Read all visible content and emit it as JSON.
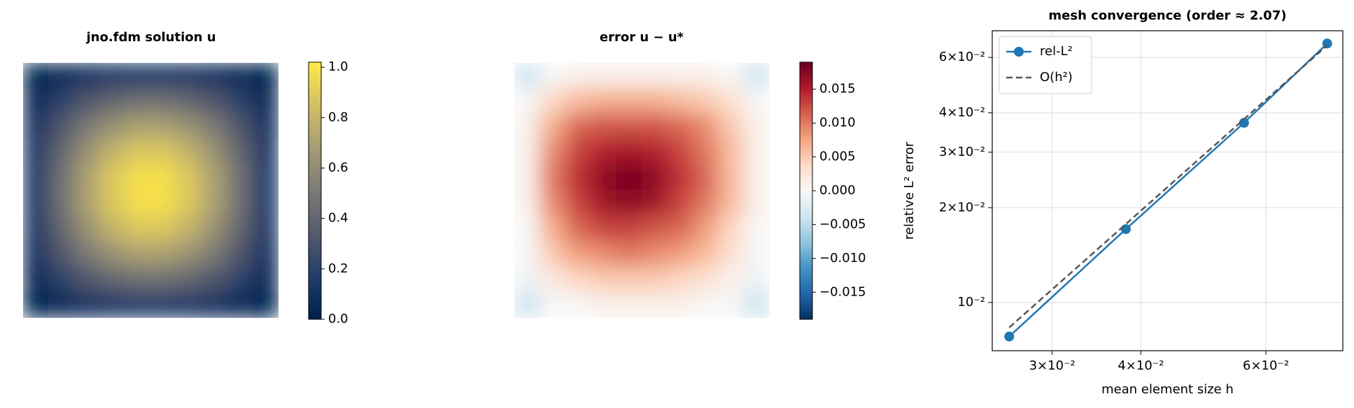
{
  "chart_data": [
    {
      "type": "heatmap",
      "title": "jno.fdm solution  u",
      "z": [
        [
          0.03,
          0.07,
          0.11,
          0.14,
          0.16,
          0.16,
          0.14,
          0.11,
          0.07,
          0.03
        ],
        [
          0.07,
          0.2,
          0.32,
          0.4,
          0.45,
          0.45,
          0.4,
          0.32,
          0.2,
          0.07
        ],
        [
          0.11,
          0.32,
          0.5,
          0.63,
          0.7,
          0.7,
          0.63,
          0.5,
          0.32,
          0.11
        ],
        [
          0.14,
          0.4,
          0.63,
          0.79,
          0.88,
          0.88,
          0.79,
          0.63,
          0.4,
          0.14
        ],
        [
          0.16,
          0.45,
          0.7,
          0.88,
          0.98,
          0.98,
          0.88,
          0.7,
          0.45,
          0.16
        ],
        [
          0.16,
          0.45,
          0.7,
          0.88,
          0.98,
          0.98,
          0.88,
          0.7,
          0.45,
          0.16
        ],
        [
          0.14,
          0.4,
          0.63,
          0.79,
          0.88,
          0.88,
          0.79,
          0.63,
          0.4,
          0.14
        ],
        [
          0.11,
          0.32,
          0.5,
          0.63,
          0.7,
          0.7,
          0.63,
          0.5,
          0.32,
          0.11
        ],
        [
          0.07,
          0.2,
          0.32,
          0.4,
          0.45,
          0.45,
          0.4,
          0.32,
          0.2,
          0.07
        ],
        [
          0.03,
          0.07,
          0.11,
          0.14,
          0.16,
          0.16,
          0.14,
          0.11,
          0.07,
          0.03
        ]
      ],
      "colorbar": {
        "lim": [
          0,
          1.02
        ],
        "ticks": [
          {
            "value": 0,
            "label": "0.0"
          },
          0.2,
          0.4,
          0.6,
          0.8,
          {
            "value": 1,
            "label": "1.0"
          }
        ],
        "colors": [
          "#00204c",
          "#213d6b",
          "#555b6c",
          "#7b7a77",
          "#a59c74",
          "#d3c064",
          "#ffe945"
        ]
      }
    },
    {
      "type": "heatmap",
      "title": "error  u − u*",
      "z": [
        [
          -0.004,
          0,
          0.001,
          0.001,
          0.001,
          0.001,
          0.001,
          0.001,
          0,
          -0.004
        ],
        [
          0,
          0.004,
          0.006,
          0.007,
          0.007,
          0.007,
          0.006,
          0.005,
          0.003,
          0
        ],
        [
          0.001,
          0.007,
          0.011,
          0.012,
          0.012,
          0.012,
          0.011,
          0.009,
          0.005,
          0.001
        ],
        [
          0.001,
          0.009,
          0.013,
          0.015,
          0.016,
          0.015,
          0.013,
          0.01,
          0.006,
          0.001
        ],
        [
          0.001,
          0.01,
          0.014,
          0.017,
          0.018,
          0.017,
          0.014,
          0.011,
          0.006,
          0.001
        ],
        [
          0.001,
          0.009,
          0.013,
          0.016,
          0.017,
          0.016,
          0.013,
          0.01,
          0.006,
          0.001
        ],
        [
          0,
          0.007,
          0.011,
          0.013,
          0.013,
          0.012,
          0.011,
          0.008,
          0.004,
          0
        ],
        [
          0,
          0.005,
          0.008,
          0.009,
          0.01,
          0.009,
          0.008,
          0.006,
          0.003,
          0
        ],
        [
          -0.001,
          0.002,
          0.004,
          0.005,
          0.005,
          0.005,
          0.004,
          0.003,
          0.001,
          -0.001
        ],
        [
          -0.004,
          0,
          0,
          0.001,
          0.001,
          0.001,
          0.001,
          0,
          0,
          -0.004
        ]
      ],
      "colorbar": {
        "lim": [
          -0.019,
          0.019
        ],
        "ticks": [
          {
            "value": -0.015,
            "label": "−0.015"
          },
          {
            "value": -0.01,
            "label": "−0.010"
          },
          {
            "value": -0.005,
            "label": "−0.005"
          },
          {
            "value": 0,
            "label": "0.000"
          },
          0.005,
          {
            "value": 0.01,
            "label": "0.010"
          },
          0.015
        ],
        "colors": [
          "#053061",
          "#2166ac",
          "#4393c3",
          "#92c5de",
          "#d1e5f0",
          "#f7f7f7",
          "#fddbc7",
          "#f4a582",
          "#d6604d",
          "#b2182b",
          "#67001f"
        ]
      }
    },
    {
      "type": "line",
      "title": "mesh convergence (order ≈ 2.07)",
      "xlabel": "mean element size h",
      "ylabel": "relative L² error",
      "x": [
        0.0261,
        0.0381,
        0.0559,
        0.0732
      ],
      "series": [
        {
          "name": "rel-L²",
          "color": "#1f77b4",
          "values": [
            0.0078,
            0.0171,
            0.0372,
            0.0664
          ],
          "marker": true
        },
        {
          "name": "O(h²)",
          "color": "#555555",
          "values": [
            0.00833,
            0.01774,
            0.0382,
            0.0655
          ],
          "dash": true
        }
      ],
      "xlim": [
        0.0247,
        0.077
      ],
      "ylim": [
        0.00703,
        0.0729
      ],
      "xscale": "log",
      "yscale": "log",
      "xticks": [
        {
          "value": 0.03,
          "label": "3×10⁻²"
        },
        {
          "value": 0.04,
          "label": "4×10⁻²"
        },
        {
          "value": 0.06,
          "label": "6×10⁻²"
        }
      ],
      "yticks": [
        {
          "value": 0.01,
          "label": "10⁻²"
        },
        {
          "value": 0.02,
          "label": "2×10⁻²"
        },
        {
          "value": 0.03,
          "label": "3×10⁻²"
        },
        {
          "value": 0.04,
          "label": "4×10⁻²"
        },
        {
          "value": 0.06,
          "label": "6×10⁻²"
        }
      ],
      "grid": true,
      "legend": "upper-left"
    }
  ]
}
